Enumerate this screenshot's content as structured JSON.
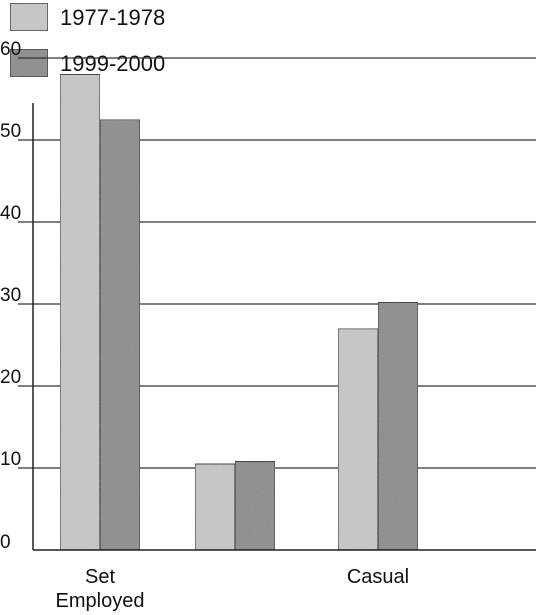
{
  "chart_data": {
    "type": "bar",
    "categories": [
      "Set\nEmployed",
      "",
      "Casual"
    ],
    "series": [
      {
        "name": "1977-1978",
        "values": [
          58,
          10.5,
          27
        ],
        "color": "#c7c7c7"
      },
      {
        "name": "1999-2000",
        "values": [
          52.5,
          10.8,
          30.2
        ],
        "color": "#8c8c8c"
      }
    ],
    "yticks": [
      "0",
      "10",
      "20",
      "30",
      "40",
      "50",
      "60"
    ],
    "ylim": [
      0,
      62
    ],
    "grid": true,
    "legend_position": "top-left"
  }
}
